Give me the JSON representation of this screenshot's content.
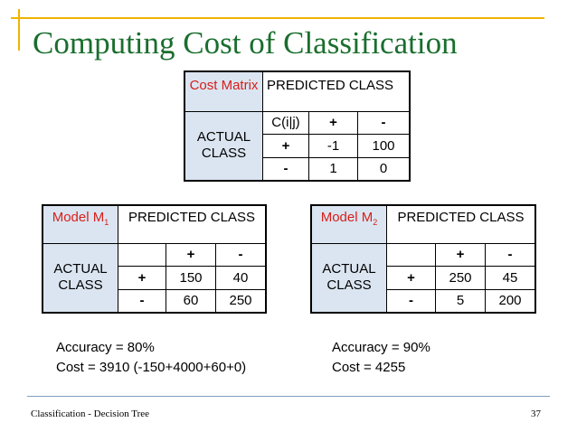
{
  "slide": {
    "title": "Computing Cost of Classification",
    "footer_left": "Classification - Decision Tree",
    "page_number": "37"
  },
  "cost_matrix": {
    "corner": "Cost Matrix",
    "predicted_header": "PREDICTED CLASS",
    "actual_header": "ACTUAL CLASS",
    "col_label": "C(i|j)",
    "pos": "+",
    "neg": "-",
    "values": {
      "pp": "-1",
      "pn": "100",
      "np": "1",
      "nn": "0"
    }
  },
  "model_m1": {
    "name": "Model M",
    "subscript": "1",
    "predicted_header": "PREDICTED CLASS",
    "actual_header": "ACTUAL CLASS",
    "pos": "+",
    "neg": "-",
    "values": {
      "pp": "150",
      "pn": "40",
      "np": "60",
      "nn": "250"
    },
    "accuracy": "Accuracy = 80%",
    "cost": "Cost = 3910 (-150+4000+60+0)"
  },
  "model_m2": {
    "name": "Model M",
    "subscript": "2",
    "predicted_header": "PREDICTED CLASS",
    "actual_header": "ACTUAL CLASS",
    "pos": "+",
    "neg": "-",
    "values": {
      "pp": "250",
      "pn": "45",
      "np": "5",
      "nn": "200"
    },
    "accuracy": "Accuracy = 90%",
    "cost": "Cost = 4255"
  }
}
